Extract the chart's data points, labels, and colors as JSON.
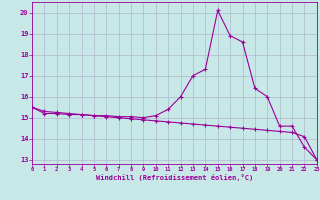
{
  "x": [
    0,
    1,
    2,
    3,
    4,
    5,
    6,
    7,
    8,
    9,
    10,
    11,
    12,
    13,
    14,
    15,
    16,
    17,
    18,
    19,
    20,
    21,
    22,
    23
  ],
  "temperature": [
    15.5,
    15.3,
    15.25,
    15.2,
    15.15,
    15.1,
    15.05,
    15.0,
    14.95,
    14.9,
    14.85,
    14.8,
    14.75,
    14.7,
    14.65,
    14.6,
    14.55,
    14.5,
    14.45,
    14.4,
    14.35,
    14.3,
    14.1,
    13.0
  ],
  "windchill": [
    15.5,
    15.2,
    15.2,
    15.15,
    15.15,
    15.1,
    15.1,
    15.05,
    15.05,
    15.0,
    15.1,
    15.4,
    16.0,
    17.0,
    17.3,
    20.1,
    18.9,
    18.6,
    16.4,
    16.0,
    14.6,
    14.6,
    13.6,
    13.0
  ],
  "line_color": "#990099",
  "bg_color": "#c8e8e8",
  "grid_color": "#b0b8cc",
  "xlabel": "Windchill (Refroidissement éolien,°C)",
  "ylim": [
    12.8,
    20.5
  ],
  "xlim": [
    0,
    23
  ],
  "yticks": [
    13,
    14,
    15,
    16,
    17,
    18,
    19,
    20
  ],
  "xticks": [
    0,
    1,
    2,
    3,
    4,
    5,
    6,
    7,
    8,
    9,
    10,
    11,
    12,
    13,
    14,
    15,
    16,
    17,
    18,
    19,
    20,
    21,
    22,
    23
  ],
  "marker": "+",
  "markersize": 3,
  "linewidth": 0.8
}
